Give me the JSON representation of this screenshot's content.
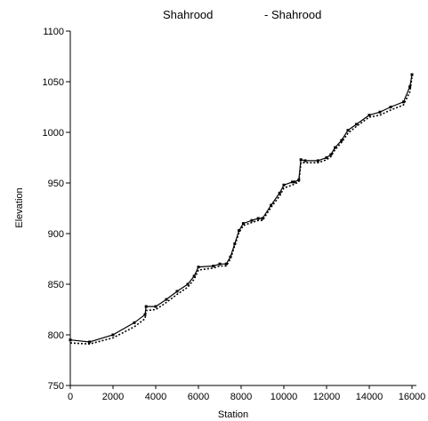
{
  "chart_data": {
    "type": "line",
    "title": "",
    "xlabel": "Station",
    "ylabel": "Elevation",
    "xlim": [
      0,
      16000
    ],
    "ylim": [
      750,
      1100
    ],
    "x_ticks": [
      0,
      2000,
      4000,
      6000,
      8000,
      10000,
      12000,
      14000,
      16000
    ],
    "y_ticks": [
      750,
      800,
      850,
      900,
      950,
      1000,
      1050,
      1100
    ],
    "grid": false,
    "legend": {
      "placement": "top",
      "entries": [
        "Shahrood",
        "- Shahrood"
      ]
    },
    "series": [
      {
        "name": "Shahrood",
        "style": "solid",
        "color": "#000000",
        "x": [
          0,
          900,
          2000,
          3000,
          3500,
          3550,
          4000,
          4500,
          5000,
          5500,
          5800,
          6000,
          6700,
          7000,
          7300,
          7500,
          7700,
          7900,
          8100,
          8500,
          8800,
          9000,
          9400,
          9800,
          10000,
          10400,
          10500,
          10700,
          10800,
          11000,
          11600,
          12000,
          12200,
          12400,
          12700,
          13000,
          13400,
          14000,
          14500,
          15000,
          15600,
          15900,
          16000
        ],
        "y": [
          795,
          793,
          800,
          812,
          820,
          828,
          828,
          835,
          843,
          850,
          858,
          867,
          868,
          870,
          870,
          877,
          890,
          903,
          910,
          913,
          915,
          915,
          928,
          940,
          948,
          951,
          951,
          953,
          973,
          972,
          972,
          975,
          978,
          985,
          992,
          1002,
          1008,
          1017,
          1020,
          1025,
          1030,
          1045,
          1057
        ]
      },
      {
        "name": "- Shahrood",
        "style": "dotted",
        "color": "#000000",
        "x": [
          0,
          900,
          2000,
          3000,
          3500,
          3550,
          4000,
          4500,
          5000,
          5500,
          5800,
          6000,
          6700,
          7000,
          7300,
          7500,
          7700,
          7900,
          8100,
          8500,
          8800,
          9000,
          9400,
          9800,
          10000,
          10400,
          10500,
          10700,
          10800,
          11000,
          11600,
          12000,
          12200,
          12400,
          12700,
          13000,
          13400,
          14000,
          14500,
          15000,
          15600,
          15900,
          16000
        ],
        "y": [
          792,
          791,
          797,
          808,
          816,
          824,
          825,
          832,
          840,
          847,
          855,
          864,
          866,
          868,
          868,
          875,
          888,
          901,
          908,
          911,
          913,
          913,
          926,
          937,
          945,
          948,
          949,
          951,
          970,
          970,
          970,
          973,
          976,
          983,
          990,
          999,
          1006,
          1015,
          1017,
          1022,
          1027,
          1040,
          1054
        ]
      }
    ]
  }
}
